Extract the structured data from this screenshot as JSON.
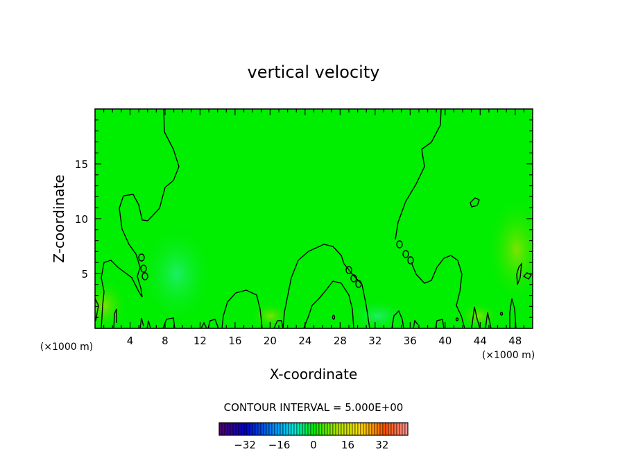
{
  "chart_data": {
    "type": "heatmap",
    "title": "vertical velocity",
    "xlabel": "X-coordinate",
    "ylabel": "Z-coordinate",
    "x_unit_left": "(×1000 m)",
    "x_unit_right": "(×1000 m)",
    "xlim": [
      0,
      50
    ],
    "ylim": [
      0,
      20
    ],
    "x_ticks": [
      4,
      8,
      12,
      16,
      20,
      24,
      28,
      32,
      36,
      40,
      44,
      48
    ],
    "y_ticks": [
      5,
      10,
      15
    ],
    "contour_interval_label": "CONTOUR INTERVAL = 5.000E+00",
    "colorbar": {
      "min": -44,
      "max": 44,
      "ticks": [
        -32,
        -16,
        0,
        16,
        32
      ]
    }
  }
}
